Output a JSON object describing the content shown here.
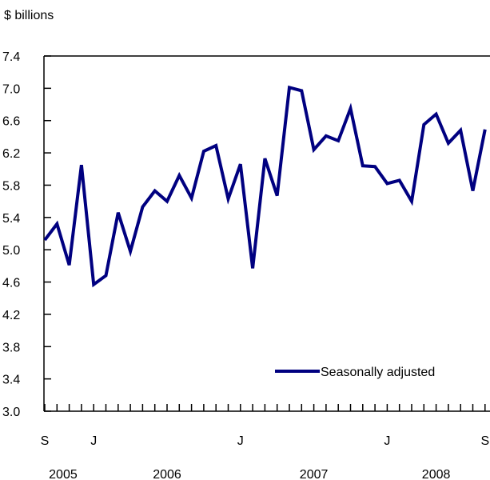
{
  "chart_data": {
    "type": "line",
    "ylabel": "$ billions",
    "ylim": [
      3.0,
      7.4
    ],
    "y_ticks": [
      "3.0",
      "3.4",
      "3.8",
      "4.2",
      "4.6",
      "5.0",
      "5.4",
      "5.8",
      "6.2",
      "6.6",
      "7.0",
      "7.4"
    ],
    "x_month_labels": [
      {
        "label": "S",
        "index": 0
      },
      {
        "label": "J",
        "index": 4
      },
      {
        "label": "J",
        "index": 16
      },
      {
        "label": "J",
        "index": 28
      },
      {
        "label": "S",
        "index": 36
      }
    ],
    "x_year_labels": [
      {
        "label": "2005",
        "index": 1.5
      },
      {
        "label": "2006",
        "index": 10
      },
      {
        "label": "2007",
        "index": 22
      },
      {
        "label": "2008",
        "index": 32
      }
    ],
    "grid": false,
    "legend_position": "bottom-right",
    "series": [
      {
        "name": "Seasonally adjusted",
        "color": "#000080",
        "values": [
          5.12,
          5.32,
          4.81,
          6.05,
          4.57,
          4.68,
          5.46,
          4.98,
          5.53,
          5.73,
          5.6,
          5.92,
          5.64,
          6.22,
          6.29,
          5.63,
          6.06,
          4.77,
          6.13,
          5.67,
          7.01,
          6.97,
          6.24,
          6.41,
          6.35,
          6.75,
          6.04,
          6.03,
          5.82,
          5.86,
          5.6,
          6.55,
          6.68,
          6.32,
          6.48,
          5.73,
          6.49
        ]
      }
    ]
  }
}
